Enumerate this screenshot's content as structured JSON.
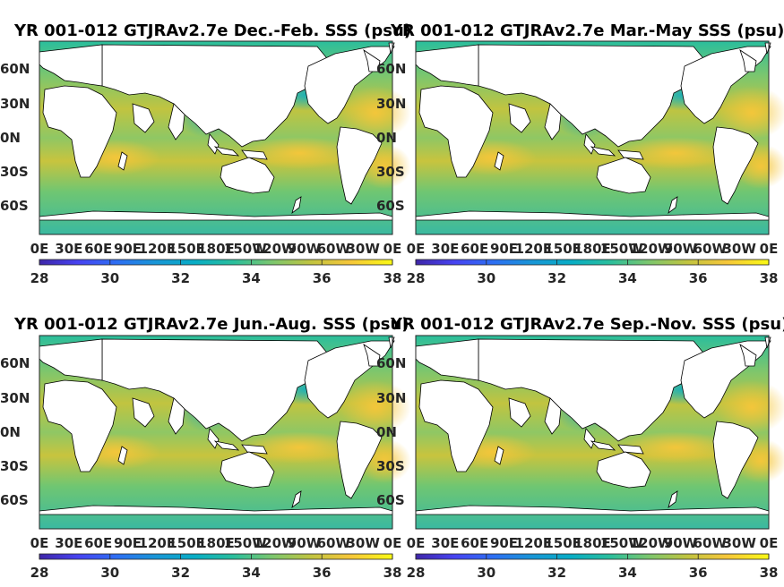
{
  "colormap": [
    "#3e26a8",
    "#4743f1",
    "#2d6ff3",
    "#1896d6",
    "#08adc5",
    "#2abe9c",
    "#7cc66e",
    "#c1c440",
    "#f6c63a",
    "#f9f915"
  ],
  "land_color": "#ffffff",
  "colorbar": {
    "ticks": [
      "28",
      "30",
      "32",
      "34",
      "36",
      "38"
    ],
    "min": 28,
    "max": 38
  },
  "lat_labels": [
    "60N",
    "30N",
    "0N",
    "30S",
    "60S"
  ],
  "lon_labels": [
    "0E",
    "30E",
    "60E",
    "90E",
    "120E",
    "150E",
    "180E",
    "150W",
    "120W",
    "90W",
    "60W",
    "30W",
    "0E"
  ],
  "panels": [
    {
      "title": "YR 001-012 GTJRAv2.7e Dec.-Feb. SSS (psu)"
    },
    {
      "title": "YR 001-012 GTJRAv2.7e Mar.-May SSS (psu)"
    },
    {
      "title": "YR 001-012 GTJRAv2.7e Jun.-Aug. SSS (psu)"
    },
    {
      "title": "YR 001-012 GTJRAv2.7e Sep.-Nov. SSS (psu)"
    }
  ]
}
